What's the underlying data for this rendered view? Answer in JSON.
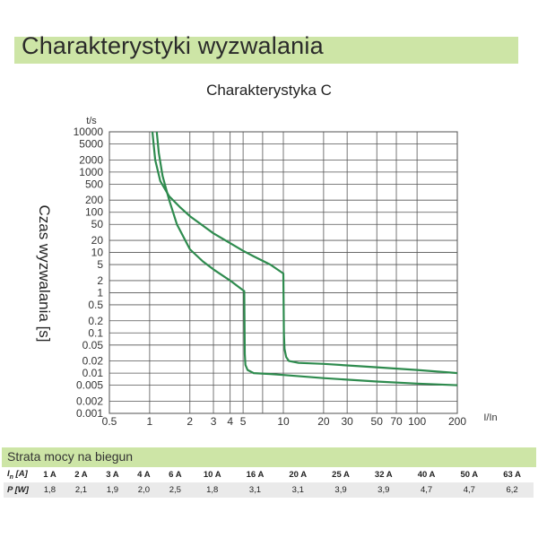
{
  "header": {
    "title": "Charakterystyki wyzwalania"
  },
  "chart_data": {
    "type": "line",
    "title": "Charakterystyka C",
    "ylabel": "Czas wyzwalania [s]",
    "y_unit_label": "t/s",
    "x_unit_label": "I/In",
    "x_scale": "log",
    "y_scale": "log",
    "xlim": [
      0.5,
      200
    ],
    "ylim": [
      0.001,
      10000
    ],
    "grid": true,
    "x_ticks": [
      0.5,
      1,
      2,
      3,
      4,
      5,
      7,
      10,
      20,
      30,
      50,
      70,
      100,
      200
    ],
    "x_tick_labels": [
      "0.5",
      "1",
      "2",
      "3",
      "4",
      "5",
      "10",
      "20",
      "30",
      "50",
      "70",
      "100",
      "200"
    ],
    "x_tick_label_values": [
      0.5,
      1,
      2,
      3,
      4,
      5,
      10,
      20,
      30,
      50,
      70,
      100,
      200
    ],
    "y_ticks": [
      0.001,
      0.002,
      0.005,
      0.01,
      0.02,
      0.05,
      0.1,
      0.2,
      0.5,
      1,
      2,
      5,
      10,
      20,
      50,
      100,
      200,
      500,
      1000,
      2000,
      5000,
      10000
    ],
    "y_tick_labels": [
      "0.001",
      "0.002",
      "0.005",
      "0.01",
      "0.02",
      "0.05",
      "0.1",
      "0.2",
      "0.5",
      "1",
      "2",
      "5",
      "10",
      "20",
      "50",
      "100",
      "200",
      "500",
      "1000",
      "2000",
      "5000",
      "10000"
    ],
    "line_color": "#2e8b4e",
    "series": [
      {
        "x": [
          1.13,
          1.17,
          1.25,
          1.4,
          1.6,
          2,
          2.5,
          3,
          4,
          5,
          5.1,
          5.15,
          5.2,
          5.4,
          6,
          8,
          10,
          20,
          50,
          100,
          200
        ],
        "y": [
          10000,
          3000,
          800,
          200,
          50,
          12,
          6,
          3.8,
          2,
          1.15,
          1.1,
          0.03,
          0.016,
          0.012,
          0.01,
          0.0095,
          0.009,
          0.0075,
          0.0062,
          0.0055,
          0.005
        ]
      },
      {
        "x": [
          1.05,
          1.07,
          1.1,
          1.2,
          1.4,
          1.7,
          2,
          3,
          4,
          5,
          6,
          8,
          10,
          10.1,
          10.2,
          10.5,
          11,
          13,
          20,
          50,
          100,
          200
        ],
        "y": [
          10000,
          5000,
          2000,
          600,
          250,
          130,
          80,
          30,
          17,
          11,
          8,
          5,
          3,
          0.1,
          0.04,
          0.025,
          0.02,
          0.018,
          0.017,
          0.014,
          0.012,
          0.01
        ]
      }
    ]
  },
  "table": {
    "title": "Strata mocy na biegun",
    "row1_label": "In [A]",
    "row2_label": "P [W]",
    "currents": [
      "1 A",
      "2 A",
      "3 A",
      "4 A",
      "6 A",
      "10 A",
      "16 A",
      "20 A",
      "25 A",
      "32 A",
      "40 A",
      "50 A",
      "63 A"
    ],
    "powers": [
      "1,8",
      "2,1",
      "1,9",
      "2,0",
      "2,5",
      "1,8",
      "3,1",
      "3,1",
      "3,9",
      "3,9",
      "4,7",
      "4,7",
      "6,2"
    ]
  }
}
